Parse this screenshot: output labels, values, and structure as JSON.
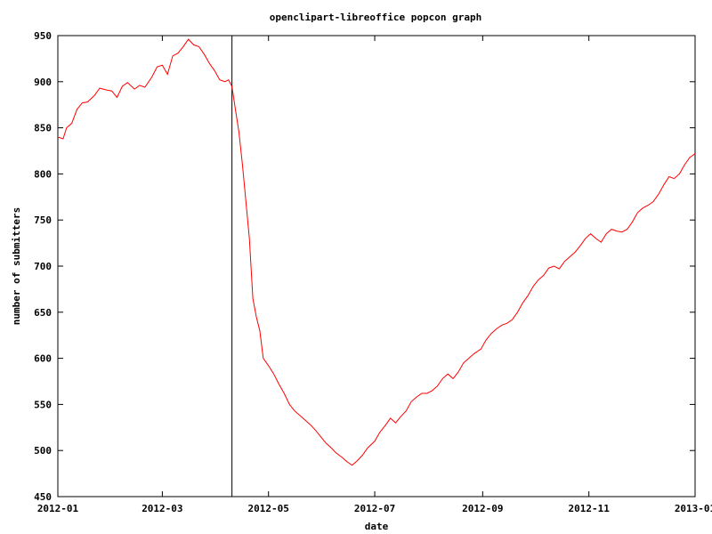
{
  "chart_data": {
    "type": "line",
    "title": "openclipart-libreoffice popcon graph",
    "xlabel": "date",
    "ylabel": "number of submitters",
    "xlim": [
      "2012-01-01",
      "2013-01-01"
    ],
    "ylim": [
      450,
      950
    ],
    "x_ticks": [
      "2012-01",
      "2012-03",
      "2012-05",
      "2012-07",
      "2012-09",
      "2012-11",
      "2013-01"
    ],
    "y_ticks": [
      450,
      500,
      550,
      600,
      650,
      700,
      750,
      800,
      850,
      900,
      950
    ],
    "grid": false,
    "legend": false,
    "marker_line": {
      "x": "2012-04-10",
      "color": "#000000"
    },
    "series": [
      {
        "color": "#ff0000",
        "points": [
          [
            "2012-01-01",
            840
          ],
          [
            "2012-01-04",
            838
          ],
          [
            "2012-01-06",
            850
          ],
          [
            "2012-01-09",
            855
          ],
          [
            "2012-01-12",
            870
          ],
          [
            "2012-01-15",
            877
          ],
          [
            "2012-01-18",
            878
          ],
          [
            "2012-01-22",
            885
          ],
          [
            "2012-01-25",
            893
          ],
          [
            "2012-01-29",
            891
          ],
          [
            "2012-02-01",
            890
          ],
          [
            "2012-02-04",
            883
          ],
          [
            "2012-02-07",
            895
          ],
          [
            "2012-02-10",
            899
          ],
          [
            "2012-02-14",
            892
          ],
          [
            "2012-02-17",
            896
          ],
          [
            "2012-02-20",
            894
          ],
          [
            "2012-02-24",
            905
          ],
          [
            "2012-02-27",
            916
          ],
          [
            "2012-03-01",
            918
          ],
          [
            "2012-03-04",
            908
          ],
          [
            "2012-03-07",
            928
          ],
          [
            "2012-03-10",
            931
          ],
          [
            "2012-03-13",
            938
          ],
          [
            "2012-03-16",
            946
          ],
          [
            "2012-03-19",
            940
          ],
          [
            "2012-03-22",
            938
          ],
          [
            "2012-03-25",
            930
          ],
          [
            "2012-03-28",
            920
          ],
          [
            "2012-03-31",
            912
          ],
          [
            "2012-04-03",
            902
          ],
          [
            "2012-04-06",
            900
          ],
          [
            "2012-04-08",
            902
          ],
          [
            "2012-04-10",
            895
          ],
          [
            "2012-04-12",
            870
          ],
          [
            "2012-04-14",
            845
          ],
          [
            "2012-04-16",
            810
          ],
          [
            "2012-04-18",
            770
          ],
          [
            "2012-04-20",
            730
          ],
          [
            "2012-04-22",
            665
          ],
          [
            "2012-04-24",
            645
          ],
          [
            "2012-04-26",
            630
          ],
          [
            "2012-04-28",
            600
          ],
          [
            "2012-05-01",
            592
          ],
          [
            "2012-05-04",
            583
          ],
          [
            "2012-05-07",
            572
          ],
          [
            "2012-05-10",
            562
          ],
          [
            "2012-05-13",
            550
          ],
          [
            "2012-05-16",
            543
          ],
          [
            "2012-05-19",
            538
          ],
          [
            "2012-05-22",
            533
          ],
          [
            "2012-05-25",
            528
          ],
          [
            "2012-05-28",
            522
          ],
          [
            "2012-05-31",
            515
          ],
          [
            "2012-06-03",
            508
          ],
          [
            "2012-06-06",
            503
          ],
          [
            "2012-06-09",
            497
          ],
          [
            "2012-06-12",
            493
          ],
          [
            "2012-06-15",
            488
          ],
          [
            "2012-06-18",
            484
          ],
          [
            "2012-06-21",
            489
          ],
          [
            "2012-06-24",
            495
          ],
          [
            "2012-06-27",
            503
          ],
          [
            "2012-07-01",
            510
          ],
          [
            "2012-07-04",
            520
          ],
          [
            "2012-07-07",
            527
          ],
          [
            "2012-07-10",
            535
          ],
          [
            "2012-07-13",
            530
          ],
          [
            "2012-07-16",
            537
          ],
          [
            "2012-07-19",
            543
          ],
          [
            "2012-07-22",
            553
          ],
          [
            "2012-07-25",
            558
          ],
          [
            "2012-07-28",
            562
          ],
          [
            "2012-07-31",
            562
          ],
          [
            "2012-08-03",
            565
          ],
          [
            "2012-08-06",
            570
          ],
          [
            "2012-08-09",
            578
          ],
          [
            "2012-08-12",
            583
          ],
          [
            "2012-08-15",
            578
          ],
          [
            "2012-08-18",
            585
          ],
          [
            "2012-08-21",
            595
          ],
          [
            "2012-08-24",
            600
          ],
          [
            "2012-08-27",
            605
          ],
          [
            "2012-08-31",
            610
          ],
          [
            "2012-09-03",
            620
          ],
          [
            "2012-09-06",
            627
          ],
          [
            "2012-09-09",
            632
          ],
          [
            "2012-09-12",
            636
          ],
          [
            "2012-09-15",
            638
          ],
          [
            "2012-09-18",
            642
          ],
          [
            "2012-09-21",
            650
          ],
          [
            "2012-09-24",
            660
          ],
          [
            "2012-09-27",
            668
          ],
          [
            "2012-09-30",
            678
          ],
          [
            "2012-10-03",
            685
          ],
          [
            "2012-10-06",
            690
          ],
          [
            "2012-10-09",
            698
          ],
          [
            "2012-10-12",
            700
          ],
          [
            "2012-10-15",
            697
          ],
          [
            "2012-10-18",
            705
          ],
          [
            "2012-10-21",
            710
          ],
          [
            "2012-10-24",
            715
          ],
          [
            "2012-10-27",
            722
          ],
          [
            "2012-10-30",
            730
          ],
          [
            "2012-11-02",
            735
          ],
          [
            "2012-11-05",
            730
          ],
          [
            "2012-11-08",
            726
          ],
          [
            "2012-11-11",
            735
          ],
          [
            "2012-11-14",
            740
          ],
          [
            "2012-11-17",
            738
          ],
          [
            "2012-11-20",
            737
          ],
          [
            "2012-11-23",
            740
          ],
          [
            "2012-11-26",
            748
          ],
          [
            "2012-11-29",
            758
          ],
          [
            "2012-12-02",
            763
          ],
          [
            "2012-12-05",
            766
          ],
          [
            "2012-12-08",
            770
          ],
          [
            "2012-12-11",
            778
          ],
          [
            "2012-12-14",
            788
          ],
          [
            "2012-12-17",
            797
          ],
          [
            "2012-12-20",
            795
          ],
          [
            "2012-12-23",
            800
          ],
          [
            "2012-12-26",
            810
          ],
          [
            "2012-12-29",
            818
          ],
          [
            "2013-01-01",
            822
          ]
        ]
      }
    ]
  }
}
